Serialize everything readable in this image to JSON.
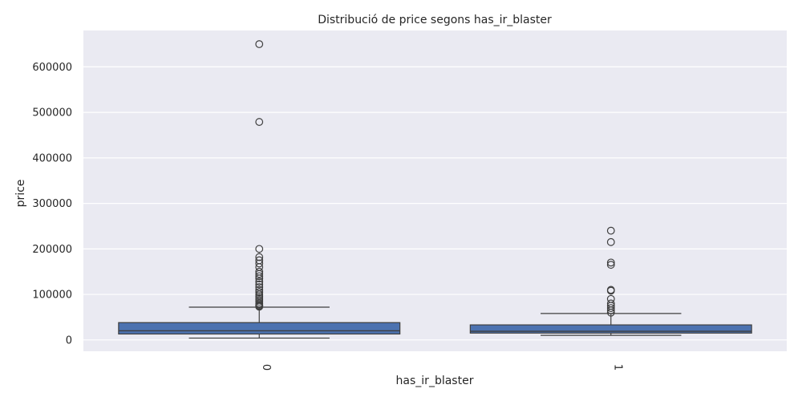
{
  "chart_data": {
    "type": "box",
    "title": "Distribució de price segons has_ir_blaster",
    "xlabel": "has_ir_blaster",
    "ylabel": "price",
    "ylim": [
      -25000,
      680000
    ],
    "yticks": [
      0,
      100000,
      200000,
      300000,
      400000,
      500000,
      600000
    ],
    "ytick_labels": [
      "0",
      "100000",
      "200000",
      "300000",
      "400000",
      "500000",
      "600000"
    ],
    "grid": true,
    "colors": {
      "background": "#eaeaf2",
      "grid": "#ffffff",
      "box_fill": "#4c72b0",
      "line": "#3f3f3f"
    },
    "categories": [
      "0",
      "1"
    ],
    "boxes": [
      {
        "category": "0",
        "whisker_low": 4000,
        "q1": 13000,
        "median": 20000,
        "q3": 38000,
        "whisker_high": 72000,
        "outliers": [
          650000,
          479000,
          200000,
          182000,
          175000,
          168000,
          160000,
          150000,
          145000,
          140000,
          135000,
          128000,
          122000,
          116000,
          110000,
          105000,
          100000,
          96000,
          92000,
          88000,
          84000,
          80000,
          77000,
          75000,
          73000
        ]
      },
      {
        "category": "1",
        "whisker_low": 10000,
        "q1": 15000,
        "median": 19000,
        "q3": 33000,
        "whisker_high": 58000,
        "outliers": [
          240000,
          215000,
          170000,
          165000,
          110000,
          108000,
          90000,
          80000,
          75000,
          70000,
          65000,
          60000
        ]
      }
    ]
  }
}
